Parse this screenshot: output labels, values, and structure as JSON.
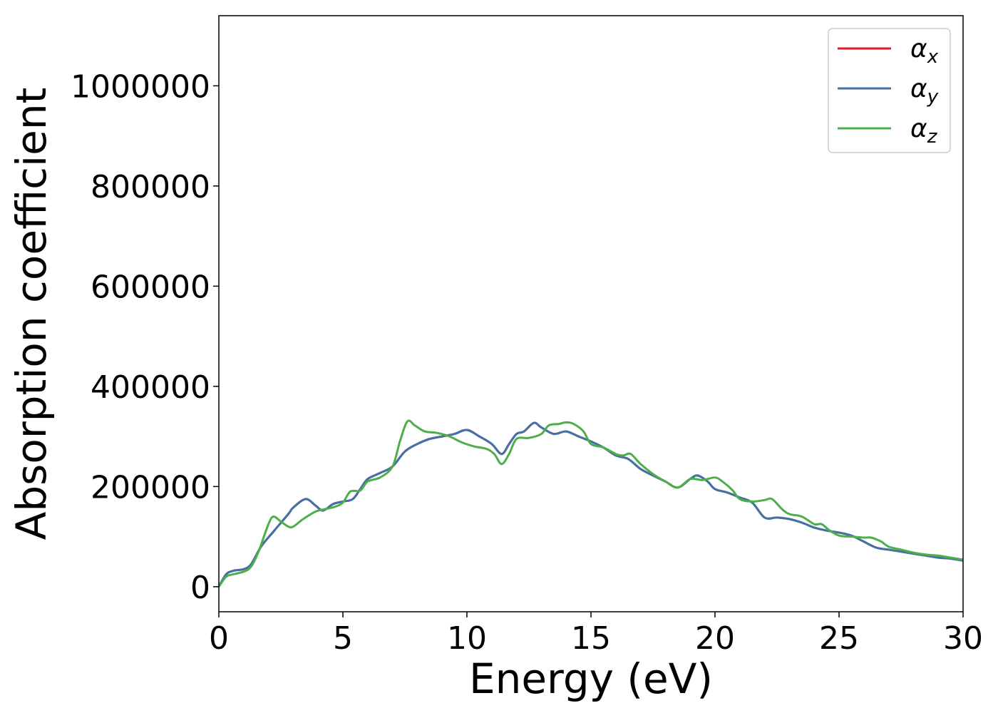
{
  "chart_data": {
    "type": "line",
    "xlabel": "Energy (eV)",
    "ylabel": "Absorption coefficient",
    "xlim": [
      0,
      30
    ],
    "ylim": [
      -50000,
      1140000
    ],
    "xticks": [
      0,
      5,
      10,
      15,
      20,
      25,
      30
    ],
    "xtick_labels": [
      "0",
      "5",
      "10",
      "15",
      "20",
      "25",
      "30"
    ],
    "yticks": [
      0,
      200000,
      400000,
      600000,
      800000,
      1000000
    ],
    "ytick_labels": [
      "0",
      "200000",
      "400000",
      "600000",
      "800000",
      "1000000"
    ],
    "grid": false,
    "legend_position": "top-right",
    "series": [
      {
        "name": "α",
        "subscript": "x",
        "color": "#e41a1c",
        "x": [
          0,
          0.3,
          0.6,
          1.0,
          1.3,
          1.7,
          2.2,
          2.8,
          3.0,
          3.5,
          3.9,
          4.2,
          4.6,
          5.0,
          5.4,
          5.7,
          6.0,
          6.5,
          7.0,
          7.5,
          8.0,
          8.5,
          9.0,
          9.5,
          10.0,
          10.5,
          11.0,
          11.4,
          11.7,
          12.0,
          12.3,
          12.7,
          13.0,
          13.5,
          14.0,
          14.5,
          15.0,
          15.5,
          16.0,
          16.5,
          17.0,
          17.5,
          18.0,
          18.5,
          19.0,
          19.3,
          19.7,
          20.0,
          20.5,
          21.0,
          21.5,
          22.0,
          22.5,
          23.0,
          23.5,
          24.0,
          24.5,
          25.0,
          25.5,
          26.0,
          26.5,
          27.0,
          27.5,
          28.0,
          28.5,
          29.0,
          29.5,
          30.0
        ],
        "y": [
          0,
          25000,
          32000,
          35000,
          45000,
          80000,
          110000,
          145000,
          158000,
          175000,
          162000,
          152000,
          165000,
          170000,
          175000,
          195000,
          215000,
          227000,
          240000,
          270000,
          285000,
          295000,
          300000,
          305000,
          313000,
          300000,
          285000,
          265000,
          285000,
          305000,
          310000,
          327000,
          318000,
          305000,
          310000,
          300000,
          290000,
          278000,
          262000,
          255000,
          235000,
          222000,
          210000,
          198000,
          215000,
          222000,
          210000,
          195000,
          188000,
          178000,
          168000,
          138000,
          138000,
          135000,
          128000,
          118000,
          112000,
          108000,
          102000,
          90000,
          78000,
          74000,
          70000,
          66000,
          62000,
          58000,
          56000,
          52000
        ]
      },
      {
        "name": "α",
        "subscript": "y",
        "color": "#3f73a8",
        "x": [
          0,
          0.3,
          0.6,
          1.0,
          1.3,
          1.7,
          2.2,
          2.8,
          3.0,
          3.5,
          3.9,
          4.2,
          4.6,
          5.0,
          5.4,
          5.7,
          6.0,
          6.5,
          7.0,
          7.5,
          8.0,
          8.5,
          9.0,
          9.5,
          10.0,
          10.5,
          11.0,
          11.4,
          11.7,
          12.0,
          12.3,
          12.7,
          13.0,
          13.5,
          14.0,
          14.5,
          15.0,
          15.5,
          16.0,
          16.5,
          17.0,
          17.5,
          18.0,
          18.5,
          19.0,
          19.3,
          19.7,
          20.0,
          20.5,
          21.0,
          21.5,
          22.0,
          22.5,
          23.0,
          23.5,
          24.0,
          24.5,
          25.0,
          25.5,
          26.0,
          26.5,
          27.0,
          27.5,
          28.0,
          28.5,
          29.0,
          29.5,
          30.0
        ],
        "y": [
          0,
          25000,
          32000,
          35000,
          45000,
          80000,
          110000,
          145000,
          158000,
          175000,
          162000,
          152000,
          165000,
          170000,
          175000,
          195000,
          215000,
          227000,
          240000,
          270000,
          285000,
          295000,
          300000,
          305000,
          313000,
          300000,
          285000,
          265000,
          285000,
          305000,
          310000,
          327000,
          318000,
          305000,
          310000,
          300000,
          290000,
          278000,
          262000,
          255000,
          235000,
          222000,
          210000,
          198000,
          215000,
          222000,
          210000,
          195000,
          188000,
          178000,
          168000,
          138000,
          138000,
          135000,
          128000,
          118000,
          112000,
          108000,
          102000,
          90000,
          78000,
          74000,
          70000,
          66000,
          62000,
          58000,
          56000,
          52000
        ]
      },
      {
        "name": "α",
        "subscript": "z",
        "color": "#4daf4a",
        "x": [
          0,
          0.3,
          0.6,
          1.0,
          1.3,
          1.6,
          2.0,
          2.2,
          2.5,
          2.8,
          3.0,
          3.4,
          3.9,
          4.3,
          4.7,
          5.0,
          5.3,
          5.7,
          6.0,
          6.5,
          7.0,
          7.3,
          7.6,
          7.9,
          8.3,
          8.8,
          9.3,
          9.8,
          10.3,
          10.8,
          11.1,
          11.4,
          11.7,
          12.0,
          12.5,
          13.0,
          13.3,
          13.7,
          14.0,
          14.3,
          14.7,
          15.0,
          15.5,
          16.0,
          16.3,
          16.6,
          17.0,
          17.5,
          18.0,
          18.5,
          19.0,
          19.5,
          20.0,
          20.3,
          20.7,
          21.0,
          21.5,
          22.0,
          22.3,
          22.7,
          23.0,
          23.5,
          24.0,
          24.3,
          24.6,
          25.0,
          25.5,
          26.0,
          26.3,
          26.7,
          27.0,
          27.5,
          28.0,
          28.5,
          29.0,
          29.5,
          30.0
        ],
        "y": [
          0,
          20000,
          25000,
          30000,
          40000,
          70000,
          125000,
          140000,
          130000,
          120000,
          120000,
          135000,
          150000,
          155000,
          160000,
          168000,
          190000,
          192000,
          210000,
          218000,
          240000,
          290000,
          330000,
          322000,
          310000,
          307000,
          300000,
          288000,
          280000,
          275000,
          265000,
          245000,
          265000,
          295000,
          297000,
          305000,
          322000,
          325000,
          328000,
          325000,
          310000,
          285000,
          278000,
          265000,
          262000,
          265000,
          245000,
          225000,
          210000,
          198000,
          215000,
          213000,
          218000,
          210000,
          193000,
          175000,
          170000,
          173000,
          175000,
          155000,
          145000,
          140000,
          125000,
          125000,
          113000,
          102000,
          100000,
          98000,
          98000,
          90000,
          80000,
          74000,
          68000,
          64000,
          62000,
          58000,
          54000
        ]
      }
    ]
  }
}
